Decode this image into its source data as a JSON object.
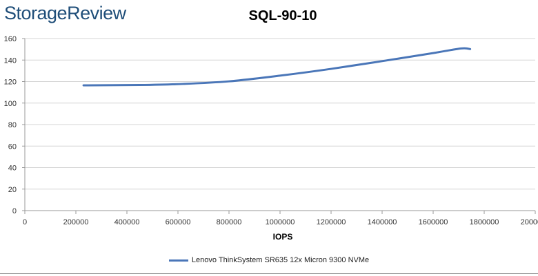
{
  "header": {
    "logo_text": "StorageReview"
  },
  "chart_data": {
    "type": "line",
    "title": "SQL-90-10",
    "xlabel": "IOPS",
    "ylabel": "",
    "xlim": [
      0,
      2000000
    ],
    "ylim": [
      0,
      160
    ],
    "x_ticks": [
      "0",
      "200000",
      "400000",
      "600000",
      "800000",
      "1000000",
      "1200000",
      "1400000",
      "1600000",
      "1800000",
      "2000000"
    ],
    "y_ticks": [
      "0",
      "20",
      "40",
      "60",
      "80",
      "100",
      "120",
      "140",
      "160"
    ],
    "grid": "horizontal",
    "legend_position": "bottom",
    "series": [
      {
        "name": "Lenovo ThinkSystem SR635 12x Micron 9300 NVMe",
        "color": "#4a76b8",
        "points": [
          [
            230000,
            116.5
          ],
          [
            450000,
            116.8
          ],
          [
            620000,
            117.8
          ],
          [
            800000,
            120.2
          ],
          [
            1000000,
            125.5
          ],
          [
            1200000,
            131.8
          ],
          [
            1400000,
            139.0
          ],
          [
            1600000,
            146.5
          ],
          [
            1710000,
            150.8
          ],
          [
            1745000,
            150.2
          ]
        ]
      }
    ]
  }
}
